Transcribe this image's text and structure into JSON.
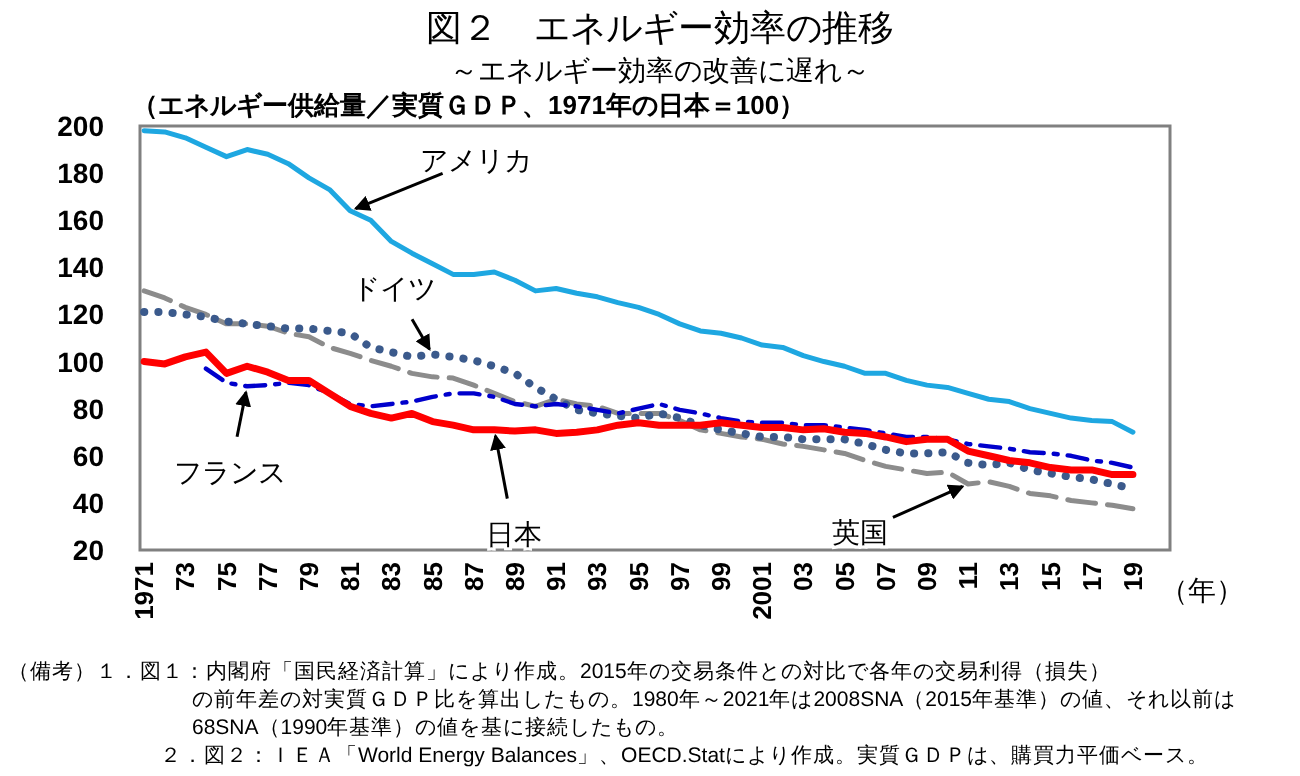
{
  "chart_data": {
    "type": "line",
    "title": "図２　エネルギー効率の推移",
    "subtitle": "～エネルギー効率の改善に遅れ～",
    "ylabel": "（エネルギー供給量／実質ＧＤＰ、1971年の日本＝100）",
    "xlabel": "（年）",
    "x": [
      1971,
      1972,
      1973,
      1974,
      1975,
      1976,
      1977,
      1978,
      1979,
      1980,
      1981,
      1982,
      1983,
      1984,
      1985,
      1986,
      1987,
      1988,
      1989,
      1990,
      1991,
      1992,
      1993,
      1994,
      1995,
      1996,
      1997,
      1998,
      1999,
      2000,
      2001,
      2002,
      2003,
      2004,
      2005,
      2006,
      2007,
      2008,
      2009,
      2010,
      2011,
      2012,
      2013,
      2014,
      2015,
      2016,
      2017,
      2018,
      2019
    ],
    "xlim": [
      1970.8,
      2020.8
    ],
    "xticks": [
      1971,
      {
        "value": 1973,
        "label": "73"
      },
      {
        "value": 1975,
        "label": "75"
      },
      {
        "value": 1977,
        "label": "77"
      },
      {
        "value": 1979,
        "label": "79"
      },
      {
        "value": 1981,
        "label": "81"
      },
      {
        "value": 1983,
        "label": "83"
      },
      {
        "value": 1985,
        "label": "85"
      },
      {
        "value": 1987,
        "label": "87"
      },
      {
        "value": 1989,
        "label": "89"
      },
      {
        "value": 1991,
        "label": "91"
      },
      {
        "value": 1993,
        "label": "93"
      },
      {
        "value": 1995,
        "label": "95"
      },
      {
        "value": 1997,
        "label": "97"
      },
      {
        "value": 1999,
        "label": "99"
      },
      2001,
      {
        "value": 2003,
        "label": "03"
      },
      {
        "value": 2005,
        "label": "05"
      },
      {
        "value": 2007,
        "label": "07"
      },
      {
        "value": 2009,
        "label": "09"
      },
      {
        "value": 2011,
        "label": "11"
      },
      {
        "value": 2013,
        "label": "13"
      },
      {
        "value": 2015,
        "label": "15"
      },
      {
        "value": 2017,
        "label": "17"
      },
      {
        "value": 2019,
        "label": "19"
      }
    ],
    "ylim": [
      20,
      200
    ],
    "yticks": [
      20,
      40,
      60,
      80,
      100,
      120,
      140,
      160,
      180,
      200
    ],
    "series": [
      {
        "color": "#1ea7e1",
        "line_style": "solid",
        "values": [
          198,
          197.5,
          195,
          191,
          187,
          190,
          188,
          184,
          178,
          173,
          164,
          160,
          151,
          146,
          141.5,
          137,
          137,
          138,
          134.5,
          130,
          131,
          129,
          127.5,
          125,
          123,
          120,
          116,
          113,
          112,
          110,
          107,
          106,
          102.5,
          100,
          98,
          95,
          95,
          92,
          90,
          89,
          86.5,
          84,
          83,
          80,
          78,
          76,
          75,
          74.5,
          70
        ]
      },
      {
        "color": "#8c8c8c",
        "line_style": "dashed",
        "values": [
          130,
          127,
          123,
          120,
          116,
          116,
          115,
          112,
          110.5,
          106,
          103.5,
          100.5,
          98,
          95,
          93.5,
          93,
          90,
          86.5,
          83,
          81,
          84,
          82,
          81,
          78,
          78,
          78,
          75,
          71,
          69.5,
          68,
          67,
          65,
          64,
          62.5,
          61,
          58,
          55.5,
          54,
          52.5,
          53,
          48,
          49,
          47,
          44,
          43,
          41,
          40,
          39,
          37.5
        ]
      },
      {
        "color": "#3b5a8c",
        "line_style": "dotted",
        "values": [
          121,
          121,
          120,
          119,
          117,
          116,
          115,
          114,
          114,
          113,
          112,
          106,
          104,
          102,
          103,
          102,
          100.5,
          98,
          95,
          89,
          84,
          79.5,
          78,
          77,
          76,
          78,
          76,
          73,
          71,
          69.5,
          68,
          68,
          67,
          67,
          67,
          65,
          62.5,
          61,
          61,
          61.5,
          57,
          56,
          57,
          54,
          52.5,
          51,
          50,
          48,
          46
        ]
      },
      {
        "color": "#0000cc",
        "line_style": "dashdot",
        "values": [
          null,
          null,
          null,
          97,
          91,
          89.5,
          90,
          91,
          90,
          86.5,
          82,
          81,
          82,
          83,
          85,
          86.5,
          86.5,
          85,
          82,
          81,
          82,
          81,
          79.5,
          78,
          80,
          82,
          79.5,
          78,
          76,
          74.5,
          74,
          74,
          73,
          73,
          72,
          71,
          69.5,
          68,
          68,
          67,
          65,
          64,
          63,
          61.5,
          61,
          60,
          58,
          57,
          55
        ]
      },
      {
        "color": "#ff0000",
        "line_style": "solid",
        "values": [
          100,
          99,
          102,
          104,
          95,
          98,
          95.5,
          92,
          92,
          86.5,
          81,
          78,
          76,
          78,
          74.5,
          73,
          71,
          71,
          70.5,
          71,
          69.5,
          70,
          71,
          73,
          74,
          73,
          73,
          73,
          74,
          73,
          72,
          72,
          71,
          71.5,
          70,
          69.5,
          68,
          66,
          67,
          67,
          62,
          60,
          58,
          57,
          55,
          54,
          54,
          52,
          52
        ]
      }
    ],
    "annotations": [
      {
        "text": "アメリカ",
        "x": 1981,
        "y": 164
      },
      {
        "text": "ドイツ",
        "x": 1985,
        "y": 103
      },
      {
        "text": "フランス",
        "x": 1976,
        "y": 89.5
      },
      {
        "text": "日本",
        "x": 1988,
        "y": 71
      },
      {
        "text": "英国",
        "x": 2011,
        "y": 48
      },
      "（備考）１．図１：内閣府「国民経済計算」により作成。2015年の交易条件との対比で各年の交易利得（損失）",
      "の前年差の対実質ＧＤＰ比を算出したもの。1980年～2021年は2008SNA（2015年基準）の値、それ以前は",
      "68SNA（1990年基準）の値を基に接続したもの。",
      "２．図２：ＩＥＡ「World Energy Balances」、OECD.Statにより作成。実質ＧＤＰは、購買力平価ベース。"
    ]
  }
}
